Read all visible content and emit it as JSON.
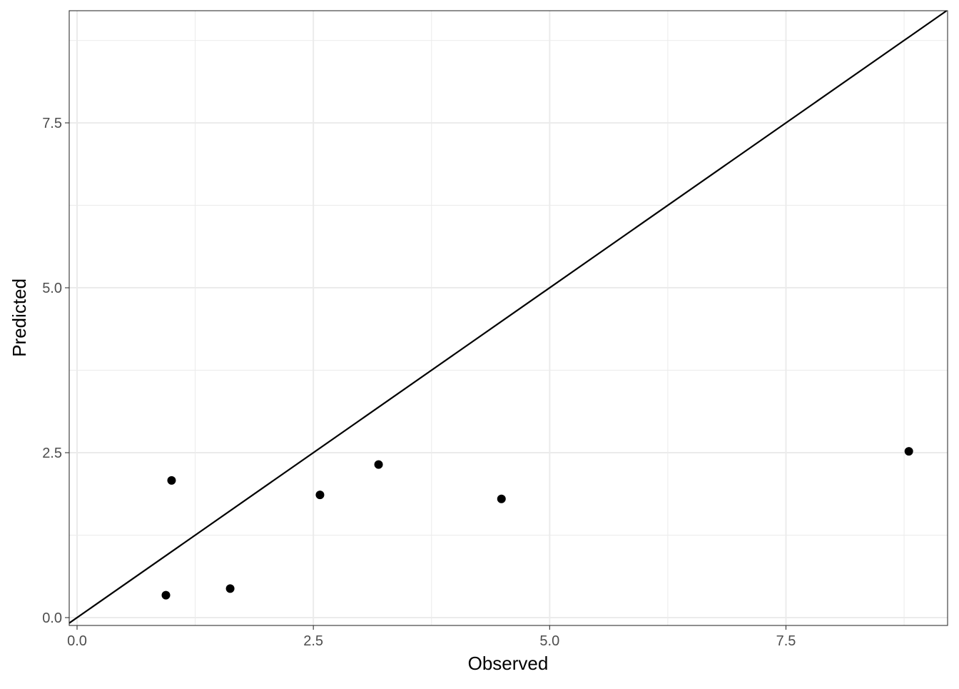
{
  "chart_data": {
    "type": "scatter",
    "title": "",
    "xlabel": "Observed",
    "ylabel": "Predicted",
    "xlim": [
      -0.083,
      9.21
    ],
    "ylim": [
      -0.119,
      9.2
    ],
    "grid": true,
    "x_ticks": [
      0.0,
      2.5,
      5.0,
      7.5
    ],
    "y_ticks": [
      0.0,
      2.5,
      5.0,
      7.5
    ],
    "x_tick_labels": [
      "0.0",
      "2.5",
      "5.0",
      "7.5"
    ],
    "y_tick_labels": [
      "0.0",
      "2.5",
      "5.0",
      "7.5"
    ],
    "points": [
      {
        "x": 0.94,
        "y": 0.34
      },
      {
        "x": 1.0,
        "y": 2.08
      },
      {
        "x": 1.62,
        "y": 0.44
      },
      {
        "x": 2.57,
        "y": 1.86
      },
      {
        "x": 3.19,
        "y": 2.32
      },
      {
        "x": 4.49,
        "y": 1.8
      },
      {
        "x": 8.8,
        "y": 2.52
      }
    ],
    "reference_line": {
      "slope": 1,
      "intercept": 0
    },
    "colors": {
      "points": "#000000",
      "line": "#000000",
      "grid": "#ebebeb",
      "tick_labels": "#4d4d4d"
    }
  }
}
